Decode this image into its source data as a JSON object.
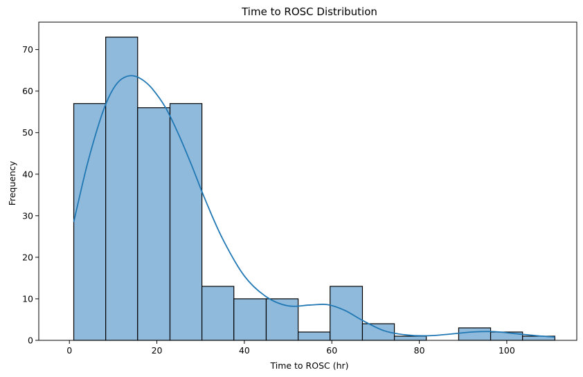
{
  "chart_data": {
    "type": "bar",
    "title": "Time to ROSC Distribution",
    "xlabel": "Time to ROSC (hr)",
    "ylabel": "Frequency",
    "xlim": [
      -7,
      116
    ],
    "ylim": [
      0,
      76.6
    ],
    "xticks": [
      0,
      20,
      40,
      60,
      80,
      100
    ],
    "yticks": [
      0,
      10,
      20,
      30,
      40,
      50,
      60,
      70
    ],
    "grid": false,
    "colors": {
      "bar_fill": "#8fbadb",
      "bar_edge": "#000000",
      "kde": "#1f77b4"
    },
    "bins": [
      {
        "x0": 1.0,
        "x1": 8.3,
        "count": 57
      },
      {
        "x0": 8.3,
        "x1": 15.6,
        "count": 73
      },
      {
        "x0": 15.6,
        "x1": 23.0,
        "count": 56
      },
      {
        "x0": 23.0,
        "x1": 30.3,
        "count": 57
      },
      {
        "x0": 30.3,
        "x1": 37.6,
        "count": 13
      },
      {
        "x0": 37.6,
        "x1": 45.0,
        "count": 10
      },
      {
        "x0": 45.0,
        "x1": 52.3,
        "count": 10
      },
      {
        "x0": 52.3,
        "x1": 59.6,
        "count": 2
      },
      {
        "x0": 59.6,
        "x1": 67.0,
        "count": 13
      },
      {
        "x0": 67.0,
        "x1": 74.3,
        "count": 4
      },
      {
        "x0": 74.3,
        "x1": 81.6,
        "count": 1
      },
      {
        "x0": 81.6,
        "x1": 89.0,
        "count": 0
      },
      {
        "x0": 89.0,
        "x1": 96.3,
        "count": 3
      },
      {
        "x0": 96.3,
        "x1": 103.6,
        "count": 2
      },
      {
        "x0": 103.6,
        "x1": 111.0,
        "count": 1
      }
    ],
    "kde": {
      "x": [
        1,
        4,
        7,
        9,
        11,
        13,
        15,
        17,
        19,
        22,
        25,
        28,
        31,
        35,
        40,
        45,
        50,
        55,
        59,
        63,
        67,
        72,
        77,
        82,
        87,
        92,
        97,
        102,
        107,
        111
      ],
      "y": [
        28.5,
        42,
        53,
        58.5,
        62,
        63.5,
        63.6,
        62.5,
        60.5,
        56,
        49.5,
        42,
        34,
        24.5,
        15.5,
        10.5,
        8.3,
        8.5,
        8.6,
        7.2,
        4.8,
        2.3,
        1.3,
        1.1,
        1.5,
        2.0,
        2.1,
        1.6,
        1.1,
        0.8
      ]
    }
  }
}
